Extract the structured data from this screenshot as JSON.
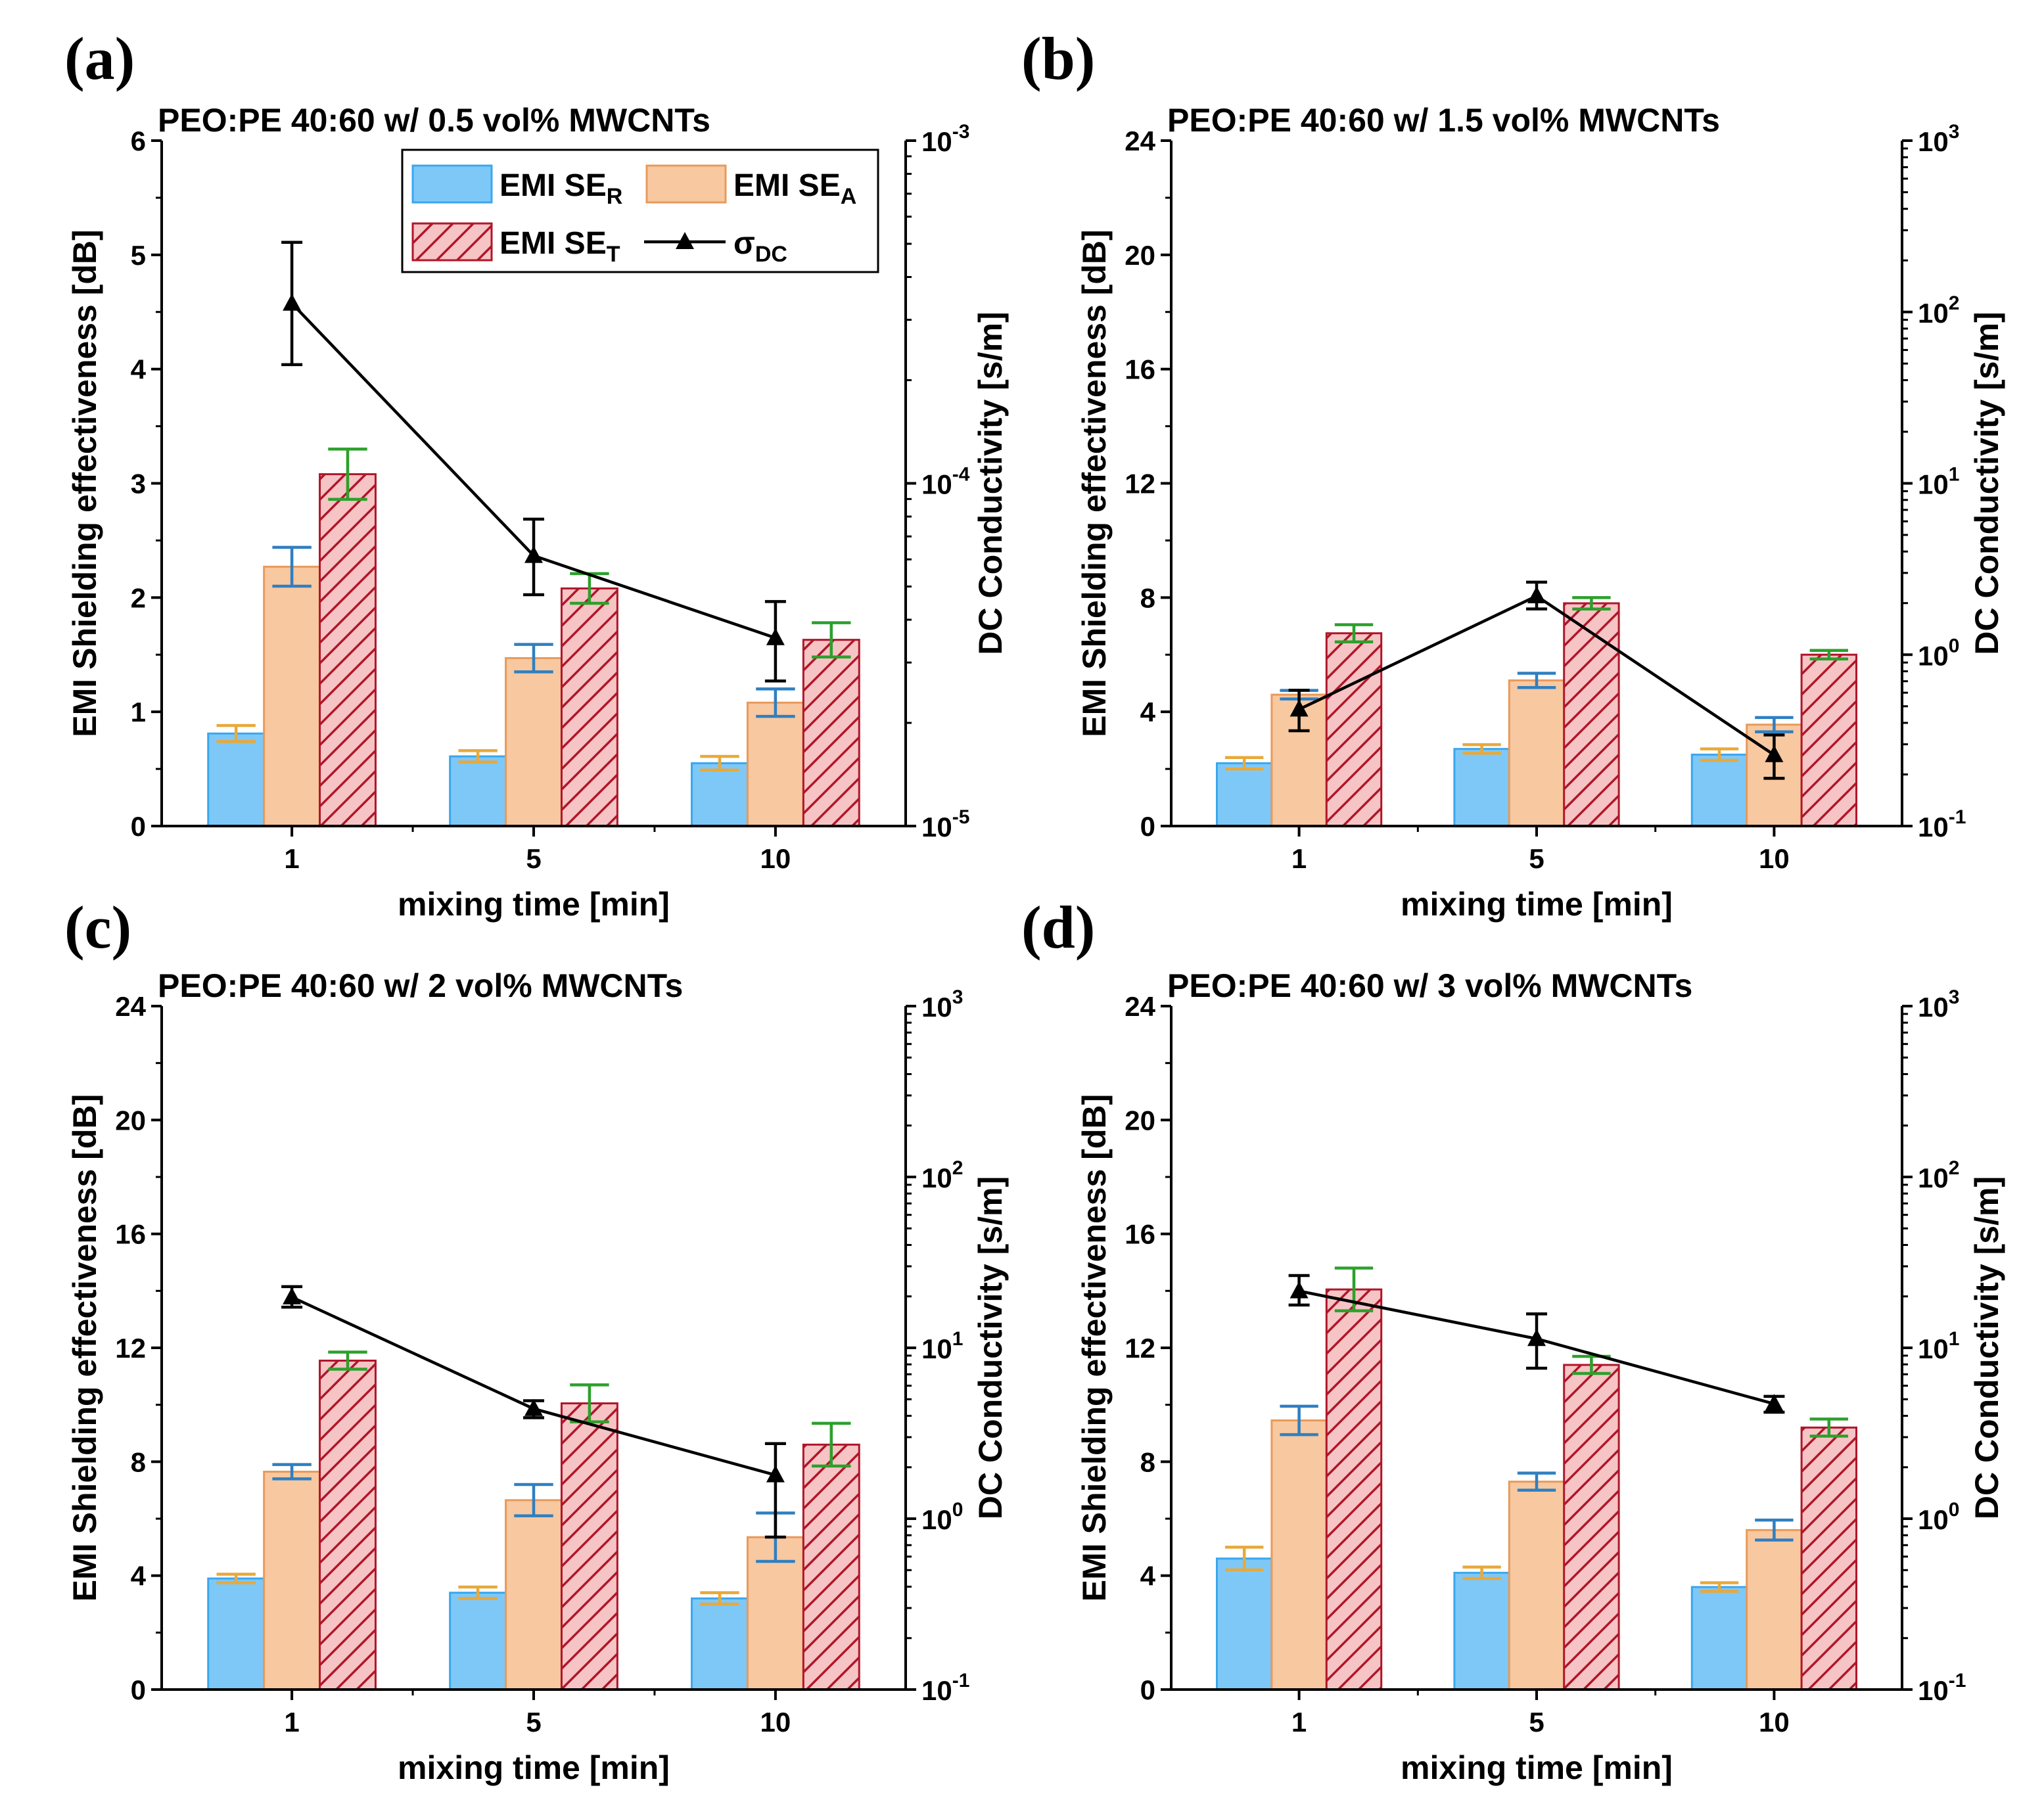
{
  "colors": {
    "se_r_fill": "#7ec8f8",
    "se_r_stroke": "#3aa7ee",
    "se_r_err": "#e8a93a",
    "se_a_fill": "#f8c8a0",
    "se_a_stroke": "#e89a5a",
    "se_a_err": "#2f7fc1",
    "se_t_fill": "#f6c4c4",
    "se_t_hatch": "#b0162a",
    "se_t_err": "#2ca02c",
    "dc": "#000000"
  },
  "legend": {
    "se_r": {
      "main": "EMI SE",
      "sub": "R"
    },
    "se_a": {
      "main": "EMI SE",
      "sub": "A"
    },
    "se_t": {
      "main": "EMI SE",
      "sub": "T"
    },
    "dc": {
      "main": "σ",
      "sub": "DC"
    }
  },
  "chart_data": [
    {
      "panel": "(a)",
      "type": "bar",
      "title": "PEO:PE 40:60 w/ 0.5 vol% MWCNTs",
      "xlabel": "mixing time [min]",
      "ylabel": "EMI Shielding effectiveness [dB]",
      "y2label": "DC Conductivity [s/m]",
      "categories": [
        "1",
        "5",
        "10"
      ],
      "ylim": [
        0,
        6
      ],
      "yticks": [
        0,
        1,
        2,
        3,
        4,
        5,
        6
      ],
      "y2lim_exp": [
        -5,
        -3
      ],
      "y2ticks": [
        {
          "base": "10",
          "exp": "-5"
        },
        {
          "base": "10",
          "exp": "-4"
        },
        {
          "base": "10",
          "exp": "-3"
        }
      ],
      "series": [
        {
          "name": "EMI SE_R",
          "values": [
            0.81,
            0.61,
            0.55
          ],
          "errors": [
            0.07,
            0.05,
            0.06
          ]
        },
        {
          "name": "EMI SE_A",
          "values": [
            2.27,
            1.47,
            1.08
          ],
          "errors": [
            0.17,
            0.12,
            0.12
          ]
        },
        {
          "name": "EMI SE_T",
          "values": [
            3.08,
            2.08,
            1.63
          ],
          "errors": [
            0.22,
            0.13,
            0.15
          ]
        }
      ],
      "dc": {
        "values": [
          0.000335,
          6.15e-05,
          3.54e-05
        ],
        "err_low": [
          0.000222,
          4.73e-05,
          2.65e-05
        ],
        "err_high": [
          0.000505,
          7.86e-05,
          4.52e-05
        ]
      },
      "show_legend": true
    },
    {
      "panel": "(b)",
      "type": "bar",
      "title": "PEO:PE 40:60 w/ 1.5 vol% MWCNTs",
      "xlabel": "mixing time [min]",
      "ylabel": "EMI Shielding effectiveness [dB]",
      "y2label": "DC Conductivity [s/m]",
      "categories": [
        "1",
        "5",
        "10"
      ],
      "ylim": [
        0,
        24
      ],
      "yticks": [
        0,
        4,
        8,
        12,
        16,
        20,
        24
      ],
      "y2lim_exp": [
        -1,
        3
      ],
      "y2ticks": [
        {
          "base": "10",
          "exp": "-1"
        },
        {
          "base": "10",
          "exp": "0"
        },
        {
          "base": "10",
          "exp": "1"
        },
        {
          "base": "10",
          "exp": "2"
        },
        {
          "base": "10",
          "exp": "3"
        }
      ],
      "series": [
        {
          "name": "EMI SE_R",
          "values": [
            2.2,
            2.7,
            2.5
          ],
          "errors": [
            0.2,
            0.15,
            0.2
          ]
        },
        {
          "name": "EMI SE_A",
          "values": [
            4.6,
            5.1,
            3.55
          ],
          "errors": [
            0.15,
            0.25,
            0.25
          ]
        },
        {
          "name": "EMI SE_T",
          "values": [
            6.75,
            7.8,
            6.0
          ],
          "errors": [
            0.3,
            0.2,
            0.15
          ]
        }
      ],
      "dc": {
        "values": [
          0.48,
          2.2,
          0.26
        ],
        "err_low": [
          0.36,
          1.85,
          0.19
        ],
        "err_high": [
          0.62,
          2.65,
          0.34
        ]
      },
      "show_legend": false
    },
    {
      "panel": "(c)",
      "type": "bar",
      "title": "PEO:PE 40:60 w/ 2 vol% MWCNTs",
      "xlabel": "mixing time [min]",
      "ylabel": "EMI Shielding effectiveness [dB]",
      "y2label": "DC Conductivity [s/m]",
      "categories": [
        "1",
        "5",
        "10"
      ],
      "ylim": [
        0,
        24
      ],
      "yticks": [
        0,
        4,
        8,
        12,
        16,
        20,
        24
      ],
      "y2lim_exp": [
        -1,
        3
      ],
      "y2ticks": [
        {
          "base": "10",
          "exp": "-1"
        },
        {
          "base": "10",
          "exp": "0"
        },
        {
          "base": "10",
          "exp": "1"
        },
        {
          "base": "10",
          "exp": "2"
        },
        {
          "base": "10",
          "exp": "3"
        }
      ],
      "series": [
        {
          "name": "EMI SE_R",
          "values": [
            3.9,
            3.4,
            3.2
          ],
          "errors": [
            0.15,
            0.2,
            0.2
          ]
        },
        {
          "name": "EMI SE_A",
          "values": [
            7.65,
            6.65,
            5.35
          ],
          "errors": [
            0.25,
            0.55,
            0.85
          ]
        },
        {
          "name": "EMI SE_T",
          "values": [
            11.55,
            10.05,
            8.6
          ],
          "errors": [
            0.3,
            0.65,
            0.75
          ]
        }
      ],
      "dc": {
        "values": [
          19.8,
          4.4,
          1.8
        ],
        "err_low": [
          17.3,
          3.9,
          0.78
        ],
        "err_high": [
          22.8,
          4.9,
          2.75
        ]
      },
      "show_legend": false
    },
    {
      "panel": "(d)",
      "type": "bar",
      "title": "PEO:PE 40:60 w/ 3 vol% MWCNTs",
      "xlabel": "mixing time [min]",
      "ylabel": "EMI Shielding effectiveness [dB]",
      "y2label": "DC Conductivity [s/m]",
      "categories": [
        "1",
        "5",
        "10"
      ],
      "ylim": [
        0,
        24
      ],
      "yticks": [
        0,
        4,
        8,
        12,
        16,
        20,
        24
      ],
      "y2lim_exp": [
        -1,
        3
      ],
      "y2ticks": [
        {
          "base": "10",
          "exp": "-1"
        },
        {
          "base": "10",
          "exp": "0"
        },
        {
          "base": "10",
          "exp": "1"
        },
        {
          "base": "10",
          "exp": "2"
        },
        {
          "base": "10",
          "exp": "3"
        }
      ],
      "series": [
        {
          "name": "EMI SE_R",
          "values": [
            4.6,
            4.1,
            3.6
          ],
          "errors": [
            0.4,
            0.2,
            0.15
          ]
        },
        {
          "name": "EMI SE_A",
          "values": [
            9.45,
            7.3,
            5.6
          ],
          "errors": [
            0.5,
            0.3,
            0.35
          ]
        },
        {
          "name": "EMI SE_T",
          "values": [
            14.05,
            11.4,
            9.2
          ],
          "errors": [
            0.75,
            0.3,
            0.3
          ]
        }
      ],
      "dc": {
        "values": [
          21.5,
          11.3,
          4.7
        ],
        "err_low": [
          17.8,
          7.6,
          4.2
        ],
        "err_high": [
          26.5,
          15.8,
          5.2
        ]
      },
      "show_legend": false
    }
  ]
}
